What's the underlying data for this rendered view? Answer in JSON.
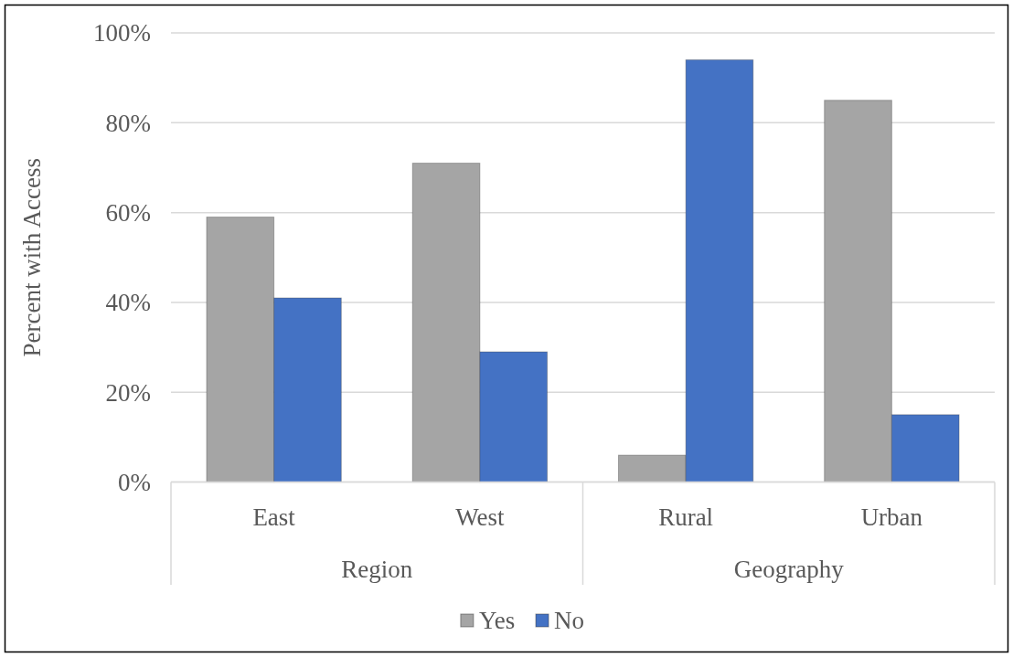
{
  "chart_data": {
    "type": "bar",
    "categories": [
      "East",
      "West",
      "Rural",
      "Urban"
    ],
    "series": [
      {
        "name": "Yes",
        "color": "#a5a5a5",
        "values": [
          59,
          71,
          6,
          85
        ]
      },
      {
        "name": "No",
        "color": "#4472c4",
        "values": [
          41,
          29,
          94,
          15
        ]
      }
    ],
    "ylabel": "Percent with Access",
    "ylim": [
      0,
      100
    ],
    "yticks": [
      {
        "value": 0,
        "label": "0%"
      },
      {
        "value": 20,
        "label": "20%"
      },
      {
        "value": 40,
        "label": "40%"
      },
      {
        "value": 60,
        "label": "60%"
      },
      {
        "value": 80,
        "label": "80%"
      },
      {
        "value": 100,
        "label": "100%"
      }
    ],
    "grid": "y",
    "annotations": [
      "Region",
      "Geography"
    ],
    "legend": "bottom"
  }
}
